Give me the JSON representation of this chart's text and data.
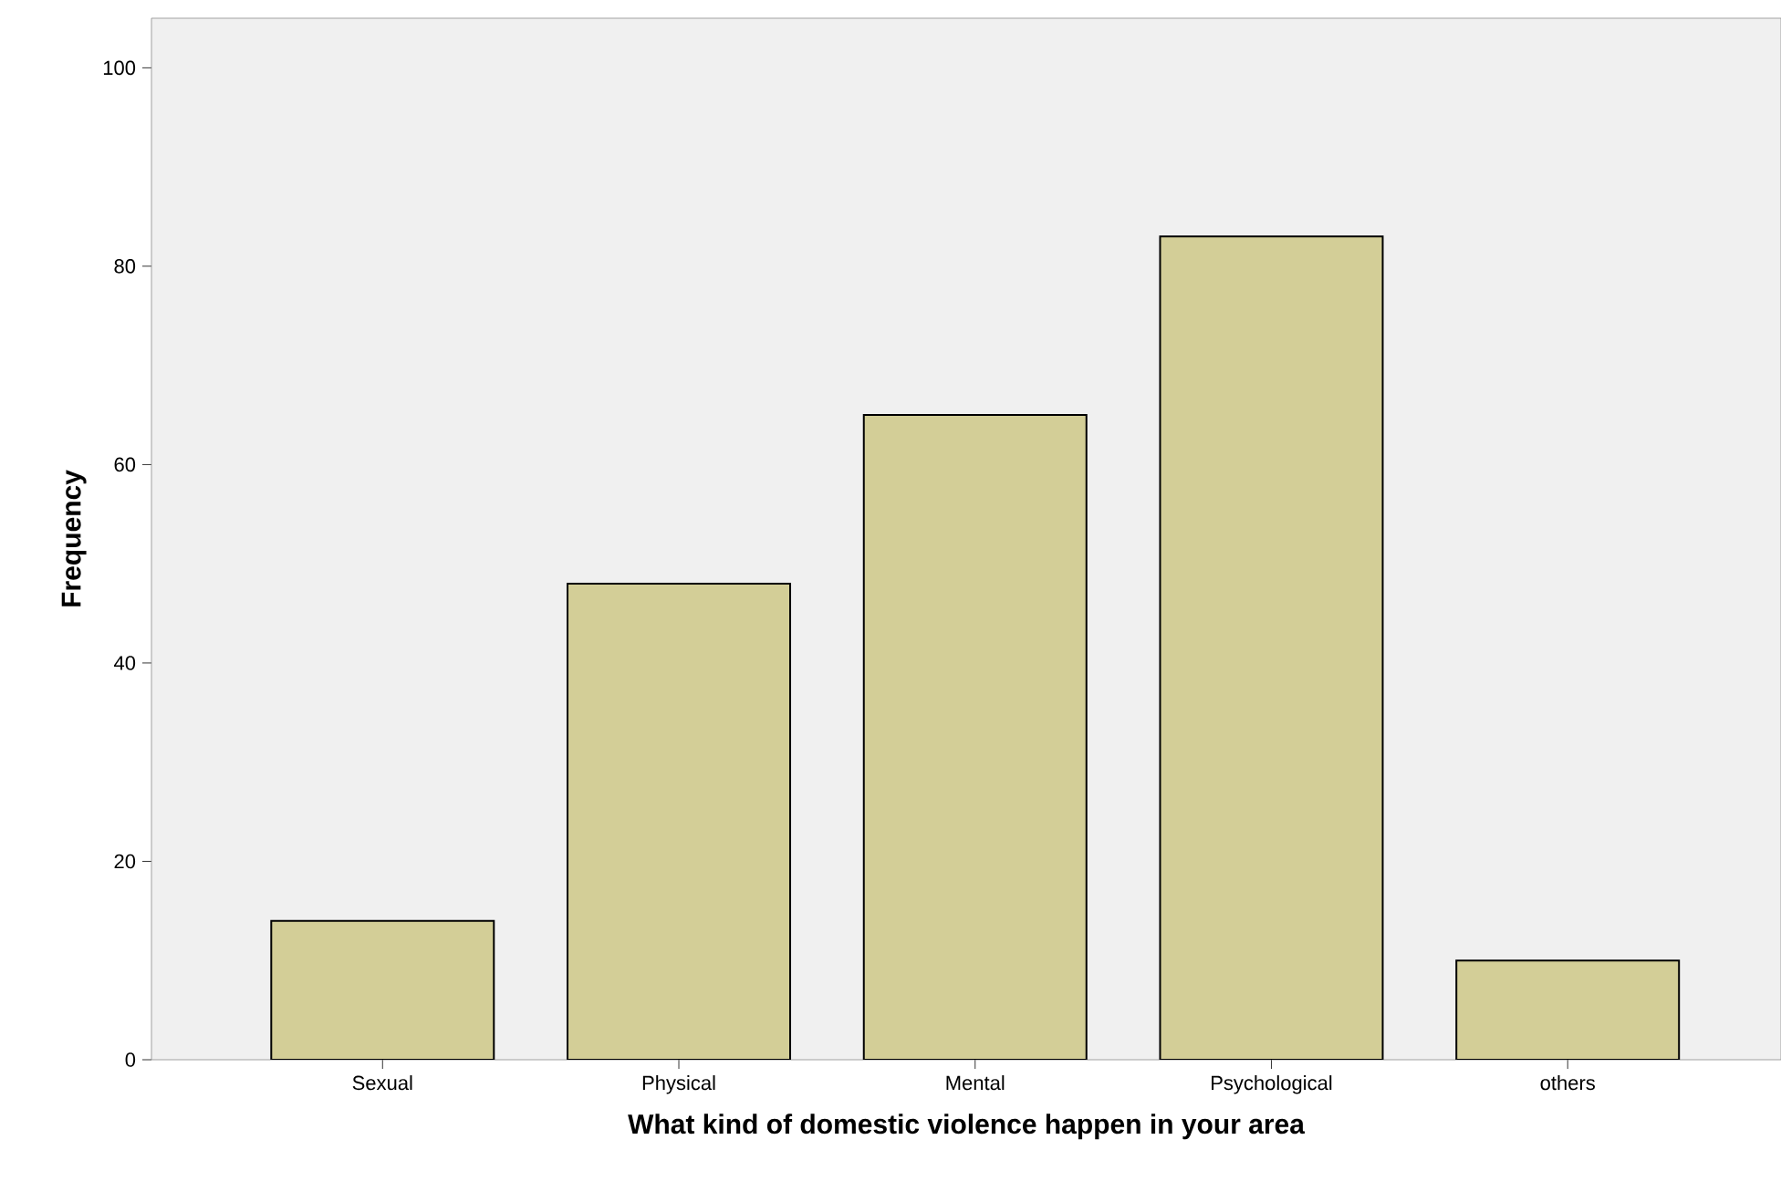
{
  "chart_data": {
    "type": "bar",
    "xlabel": "What kind of domestic violence happen in your area",
    "ylabel": "Frequency",
    "categories": [
      "Sexual",
      "Physical",
      "Mental",
      "Psychological",
      "others"
    ],
    "values": [
      14,
      48,
      65,
      83,
      10
    ],
    "color": "#d3ce97",
    "ylim": [
      0,
      105
    ],
    "yticks": [
      0,
      20,
      40,
      60,
      80,
      100
    ],
    "grid": false
  }
}
